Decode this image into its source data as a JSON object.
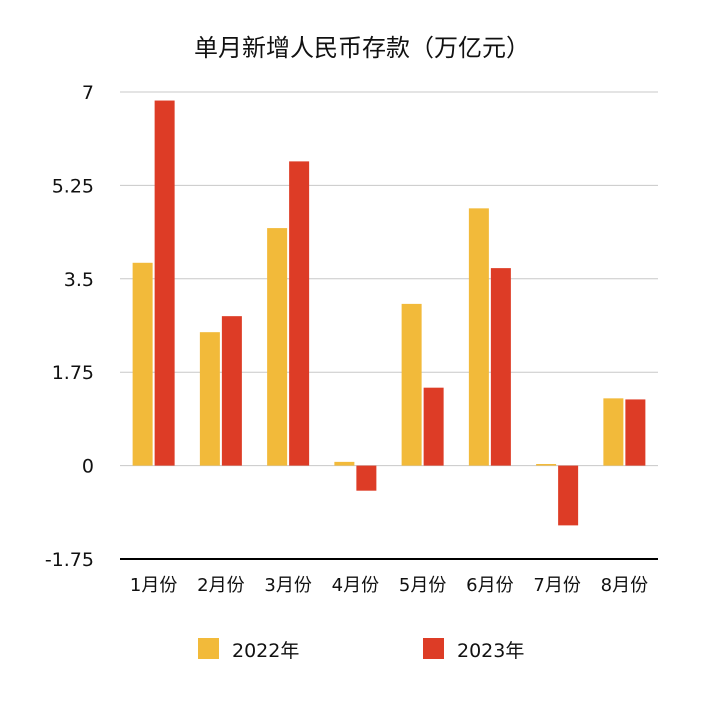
{
  "chart_data": {
    "type": "bar",
    "title": "单月新增人民币存款（万亿元）",
    "xlabel": "",
    "ylabel": "",
    "categories": [
      "1月份",
      "2月份",
      "3月份",
      "4月份",
      "5月份",
      "6月份",
      "7月份",
      "8月份"
    ],
    "series": [
      {
        "name": "2022年",
        "color": "#F2BA3A",
        "values": [
          3.8,
          2.5,
          4.45,
          0.07,
          3.03,
          4.82,
          0.03,
          1.26
        ]
      },
      {
        "name": "2023年",
        "color": "#DD3C26",
        "values": [
          6.84,
          2.8,
          5.7,
          -0.47,
          1.46,
          3.7,
          -1.12,
          1.24
        ]
      }
    ],
    "ylim": [
      -1.75,
      7
    ],
    "yticks": [
      "7",
      "5.25",
      "3.5",
      "1.75",
      "0",
      "-1.75"
    ],
    "grid": true,
    "legend": "bottom"
  }
}
